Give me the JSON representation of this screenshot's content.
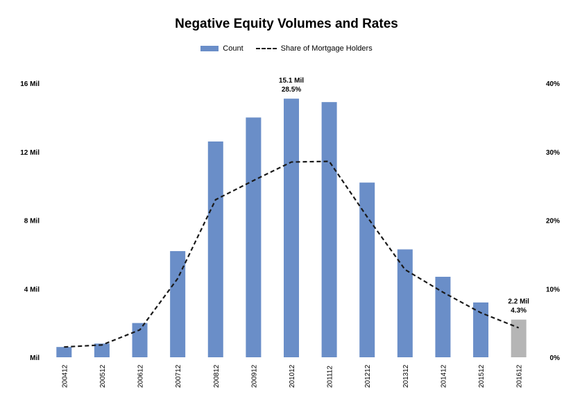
{
  "chart_data": {
    "type": "bar",
    "title": "Negative Equity Volumes and Rates",
    "categories": [
      "200412",
      "200512",
      "200612",
      "200712",
      "200812",
      "200912",
      "201012",
      "201112",
      "201212",
      "201312",
      "201412",
      "201512",
      "201612"
    ],
    "series": [
      {
        "name": "Count",
        "axis": "left",
        "kind": "bar",
        "values": [
          0.6,
          0.8,
          2.0,
          6.2,
          12.6,
          14.0,
          15.1,
          14.9,
          10.2,
          6.3,
          4.7,
          3.2,
          2.2
        ]
      },
      {
        "name": "Share of Mortgage Holders",
        "axis": "right",
        "kind": "line",
        "values": [
          1.5,
          1.8,
          4.0,
          11.5,
          23.0,
          25.8,
          28.5,
          28.6,
          20.5,
          12.8,
          9.5,
          6.5,
          4.3
        ]
      }
    ],
    "ylim_left": [
      0,
      16
    ],
    "yticks_left": [
      "Mil",
      "4 Mil",
      "8 Mil",
      "12 Mil",
      "16 Mil"
    ],
    "ylim_right": [
      0,
      40
    ],
    "yticks_right": [
      "0%",
      "10%",
      "20%",
      "30%",
      "40%"
    ],
    "annotations": [
      {
        "category": "201012",
        "line1": "15.1 Mil",
        "line2": "28.5%"
      },
      {
        "category": "201612",
        "line1": "2.2 Mil",
        "line2": "4.3%"
      }
    ],
    "highlight_category": "201612",
    "legend": {
      "bar_label": "Count",
      "line_label": "Share of Mortgage Holders",
      "position": "top-center"
    }
  },
  "colors": {
    "bar": "#6a8ec8",
    "bar_highlight": "#b5b5b5",
    "line": "#1a1a1a"
  }
}
